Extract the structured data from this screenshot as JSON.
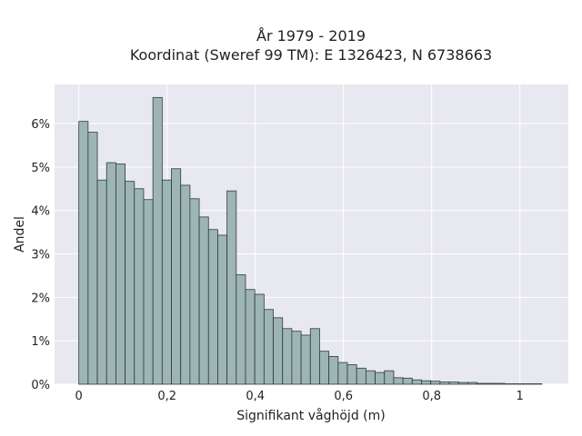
{
  "chart_data": {
    "type": "bar",
    "title": "År 1979 - 2019",
    "subtitle": "Koordinat (Sweref 99 TM): E 1326423, N 6738663",
    "xlabel": "Signifikant våghöjd (m)",
    "ylabel": "Andel",
    "xlim": [
      -0.055,
      1.11
    ],
    "ylim": [
      0,
      0.069
    ],
    "grid": true,
    "background_color": "#e8e8f0",
    "bar_color": "#9db5b4",
    "bar_edge_color": "#2f3b3b",
    "x_ticks": [
      {
        "value": 0,
        "label": "0"
      },
      {
        "value": 0.2,
        "label": "0,2"
      },
      {
        "value": 0.4,
        "label": "0,4"
      },
      {
        "value": 0.6,
        "label": "0,6"
      },
      {
        "value": 0.8,
        "label": "0,8"
      },
      {
        "value": 1,
        "label": "1"
      }
    ],
    "y_ticks": [
      {
        "value": 0,
        "label": "0%"
      },
      {
        "value": 0.01,
        "label": "1%"
      },
      {
        "value": 0.02,
        "label": "2%"
      },
      {
        "value": 0.03,
        "label": "3%"
      },
      {
        "value": 0.04,
        "label": "4%"
      },
      {
        "value": 0.05,
        "label": "5%"
      },
      {
        "value": 0.06,
        "label": "6%"
      }
    ],
    "bin_edges": [
      0,
      0.021,
      0.042,
      0.063,
      0.084,
      0.105,
      0.126,
      0.147,
      0.168,
      0.189,
      0.21,
      0.231,
      0.252,
      0.273,
      0.294,
      0.315,
      0.336,
      0.357,
      0.378,
      0.399,
      0.42,
      0.441,
      0.462,
      0.483,
      0.504,
      0.525,
      0.546,
      0.567,
      0.588,
      0.609,
      0.63,
      0.651,
      0.672,
      0.693,
      0.714,
      0.735,
      0.756,
      0.777,
      0.798,
      0.819,
      0.84,
      0.861,
      0.882,
      0.903,
      0.924,
      0.945,
      0.966,
      0.987,
      1.008,
      1.029,
      1.05
    ],
    "values": [
      0.0605,
      0.058,
      0.047,
      0.051,
      0.0507,
      0.0467,
      0.045,
      0.0425,
      0.066,
      0.047,
      0.0496,
      0.0458,
      0.0427,
      0.0385,
      0.0356,
      0.0343,
      0.0445,
      0.0252,
      0.0218,
      0.0207,
      0.0172,
      0.0153,
      0.0128,
      0.0122,
      0.0113,
      0.0128,
      0.0076,
      0.0064,
      0.005,
      0.0045,
      0.0037,
      0.0031,
      0.0027,
      0.0031,
      0.0015,
      0.0014,
      0.001,
      0.0008,
      0.0007,
      0.0005,
      0.0005,
      0.0004,
      0.0004,
      0.0002,
      0.0002,
      0.0002,
      0.0001,
      0.0001,
      0.0001,
      0.0001
    ]
  }
}
